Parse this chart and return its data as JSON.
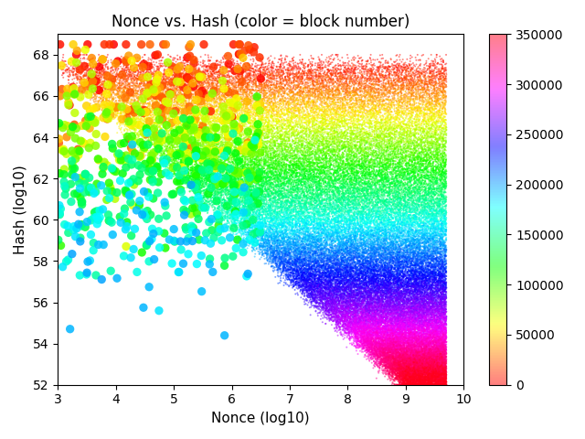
{
  "title": "Nonce vs. Hash (color = block number)",
  "xlabel": "Nonce (log10)",
  "ylabel": "Hash (log10)",
  "xlim": [
    3,
    10
  ],
  "ylim": [
    52,
    69
  ],
  "xticks": [
    3,
    4,
    5,
    6,
    7,
    8,
    9,
    10
  ],
  "yticks": [
    52,
    54,
    56,
    58,
    60,
    62,
    64,
    66,
    68
  ],
  "colormap": "hsv",
  "vmin": 0,
  "vmax": 350000,
  "colorbar_ticks": [
    0,
    50000,
    100000,
    150000,
    200000,
    250000,
    300000,
    350000
  ],
  "seed": 42,
  "figsize": [
    6.4,
    4.8
  ],
  "dpi": 100
}
